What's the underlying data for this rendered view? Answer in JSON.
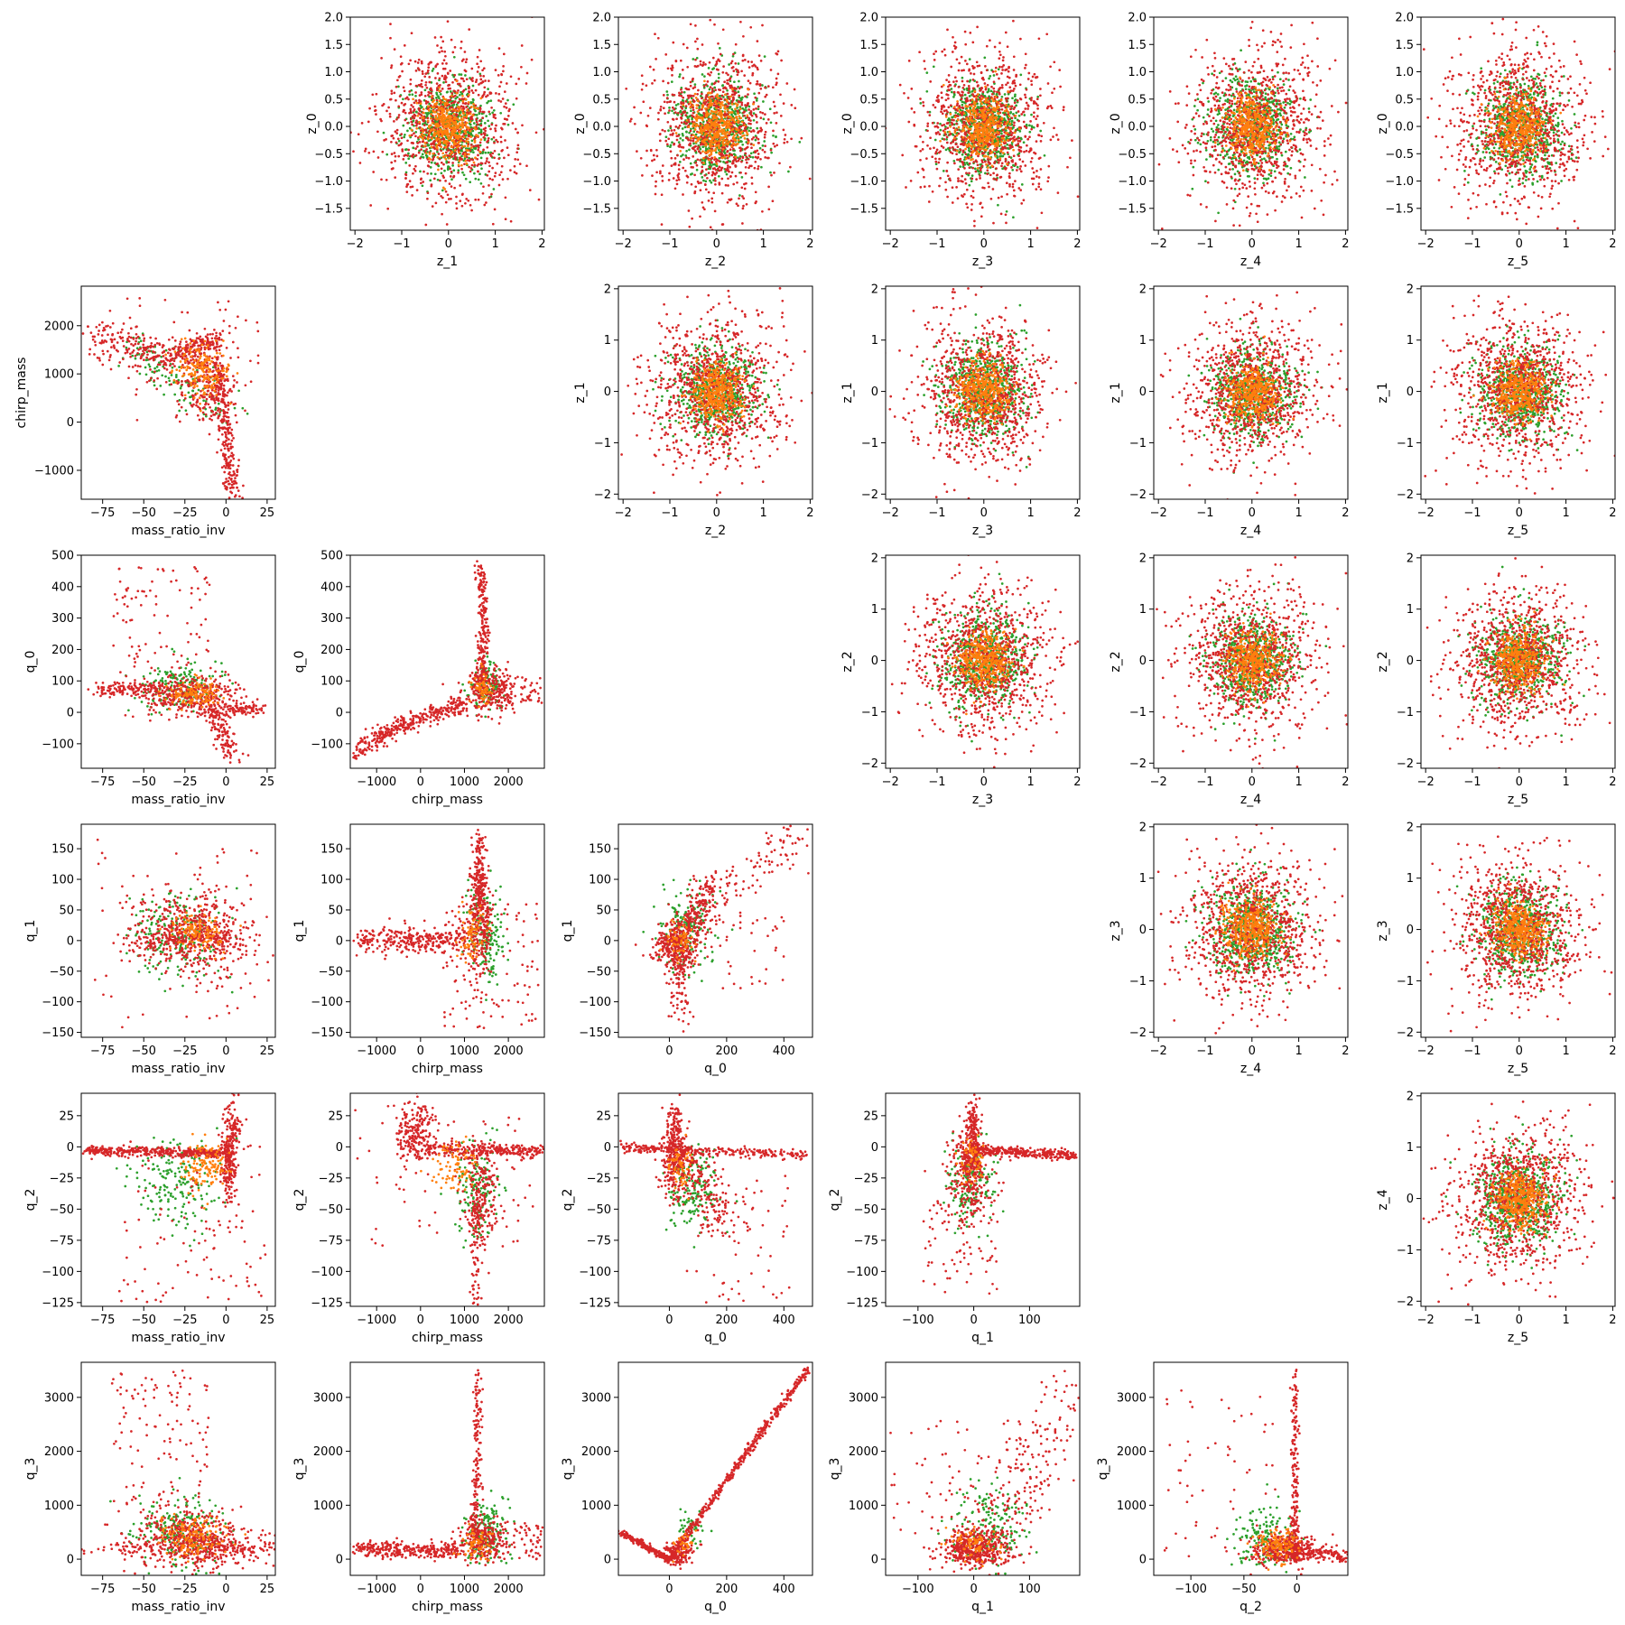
{
  "chart_data": {
    "type": "scatter",
    "layout": "pair-grid",
    "grid_rows": 6,
    "grid_cols": 6,
    "grid": false,
    "legend": "none",
    "series_colors": [
      "#d62728",
      "#2ca02c",
      "#ff7f0e"
    ],
    "variables": {
      "mass_ratio_inv": {
        "label": "mass_ratio_inv",
        "range": [
          -88,
          30
        ],
        "ticks": [
          -75,
          -50,
          -25,
          0,
          25
        ]
      },
      "chirp_mass": {
        "label": "chirp_mass",
        "range": [
          -1600,
          2820
        ],
        "ticks": [
          -1000,
          0,
          1000,
          2000
        ]
      },
      "q_0": {
        "label": "q_0",
        "range": [
          -178,
          500
        ],
        "ticks": [
          -100,
          0,
          100,
          200,
          300,
          400,
          500
        ]
      },
      "q_0_x": {
        "label": "q_0",
        "range": [
          -178,
          500
        ],
        "ticks": [
          0,
          200,
          400
        ]
      },
      "q_1": {
        "label": "q_1",
        "range": [
          -158,
          190
        ],
        "ticks": [
          -150,
          -100,
          -50,
          0,
          50,
          100,
          150
        ]
      },
      "q_1_x": {
        "label": "q_1",
        "range": [
          -158,
          190
        ],
        "ticks": [
          -100,
          0,
          100
        ]
      },
      "q_2": {
        "label": "q_2",
        "range": [
          -128,
          43
        ],
        "ticks": [
          -125,
          -100,
          -75,
          -50,
          -25,
          0,
          25
        ]
      },
      "q_2_x": {
        "label": "q_2",
        "range": [
          -135,
          48
        ],
        "ticks": [
          -100,
          -50,
          0
        ]
      },
      "q_3": {
        "label": "q_3",
        "range": [
          -300,
          3650
        ],
        "ticks": [
          0,
          1000,
          2000,
          3000
        ]
      },
      "z_0": {
        "label": "z_0",
        "range": [
          -1.9,
          2.0
        ],
        "ticks": [
          -1.5,
          -1.0,
          -0.5,
          0.0,
          0.5,
          1.0,
          1.5,
          2.0
        ],
        "tick_labels": [
          "−1.5",
          "−1.0",
          "−0.5",
          "0.0",
          "0.5",
          "1.0",
          "1.5",
          "2.0"
        ]
      },
      "z_y": {
        "label": "",
        "range": [
          -2.1,
          2.05
        ],
        "ticks": [
          -2,
          -1,
          0,
          1,
          2
        ]
      },
      "z_x": {
        "label": "",
        "range": [
          -2.1,
          2.05
        ],
        "ticks": [
          -2,
          -1,
          0,
          1,
          2
        ]
      }
    },
    "panels": [
      {
        "row": 0,
        "col": 1,
        "x": "z_1",
        "y": "z_0",
        "kind": "gauss"
      },
      {
        "row": 0,
        "col": 2,
        "x": "z_2",
        "y": "z_0",
        "kind": "gauss"
      },
      {
        "row": 0,
        "col": 3,
        "x": "z_3",
        "y": "z_0",
        "kind": "gauss"
      },
      {
        "row": 0,
        "col": 4,
        "x": "z_4",
        "y": "z_0",
        "kind": "gauss"
      },
      {
        "row": 0,
        "col": 5,
        "x": "z_5",
        "y": "z_0",
        "kind": "gauss"
      },
      {
        "row": 1,
        "col": 0,
        "x": "mass_ratio_inv",
        "y": "chirp_mass",
        "kind": "mr_cm"
      },
      {
        "row": 1,
        "col": 2,
        "x": "z_2",
        "y": "z_1",
        "kind": "gauss"
      },
      {
        "row": 1,
        "col": 3,
        "x": "z_3",
        "y": "z_1",
        "kind": "gauss"
      },
      {
        "row": 1,
        "col": 4,
        "x": "z_4",
        "y": "z_1",
        "kind": "gauss"
      },
      {
        "row": 1,
        "col": 5,
        "x": "z_5",
        "y": "z_1",
        "kind": "gauss"
      },
      {
        "row": 2,
        "col": 0,
        "x": "mass_ratio_inv",
        "y": "q_0",
        "kind": "mr_q0"
      },
      {
        "row": 2,
        "col": 1,
        "x": "chirp_mass",
        "y": "q_0",
        "kind": "cm_q0"
      },
      {
        "row": 2,
        "col": 3,
        "x": "z_3",
        "y": "z_2",
        "kind": "gauss"
      },
      {
        "row": 2,
        "col": 4,
        "x": "z_4",
        "y": "z_2",
        "kind": "gauss"
      },
      {
        "row": 2,
        "col": 5,
        "x": "z_5",
        "y": "z_2",
        "kind": "gauss"
      },
      {
        "row": 3,
        "col": 0,
        "x": "mass_ratio_inv",
        "y": "q_1",
        "kind": "mr_q1"
      },
      {
        "row": 3,
        "col": 1,
        "x": "chirp_mass",
        "y": "q_1",
        "kind": "cm_q1"
      },
      {
        "row": 3,
        "col": 2,
        "x": "q_0",
        "y": "q_1",
        "kind": "q0_q1"
      },
      {
        "row": 3,
        "col": 4,
        "x": "z_4",
        "y": "z_3",
        "kind": "gauss"
      },
      {
        "row": 3,
        "col": 5,
        "x": "z_5",
        "y": "z_3",
        "kind": "gauss"
      },
      {
        "row": 4,
        "col": 0,
        "x": "mass_ratio_inv",
        "y": "q_2",
        "kind": "mr_q2"
      },
      {
        "row": 4,
        "col": 1,
        "x": "chirp_mass",
        "y": "q_2",
        "kind": "cm_q2"
      },
      {
        "row": 4,
        "col": 2,
        "x": "q_0",
        "y": "q_2",
        "kind": "q0_q2"
      },
      {
        "row": 4,
        "col": 3,
        "x": "q_1",
        "y": "q_2",
        "kind": "q1_q2"
      },
      {
        "row": 4,
        "col": 5,
        "x": "z_5",
        "y": "z_4",
        "kind": "gauss"
      },
      {
        "row": 5,
        "col": 0,
        "x": "mass_ratio_inv",
        "y": "q_3",
        "kind": "mr_q3"
      },
      {
        "row": 5,
        "col": 1,
        "x": "chirp_mass",
        "y": "q_3",
        "kind": "cm_q3"
      },
      {
        "row": 5,
        "col": 2,
        "x": "q_0",
        "y": "q_3",
        "kind": "q0_q3"
      },
      {
        "row": 5,
        "col": 3,
        "x": "q_1",
        "y": "q_3",
        "kind": "q1_q3"
      },
      {
        "row": 5,
        "col": 4,
        "x": "q_2",
        "y": "q_3",
        "kind": "q2_q3"
      }
    ]
  },
  "labels": {
    "z_0": "z_0",
    "z_1": "z_1",
    "z_2": "z_2",
    "z_3": "z_3",
    "z_4": "z_4",
    "z_5": "z_5",
    "mass_ratio_inv": "mass_ratio_inv",
    "chirp_mass": "chirp_mass",
    "q_0": "q_0",
    "q_1": "q_1",
    "q_2": "q_2",
    "q_3": "q_3"
  }
}
